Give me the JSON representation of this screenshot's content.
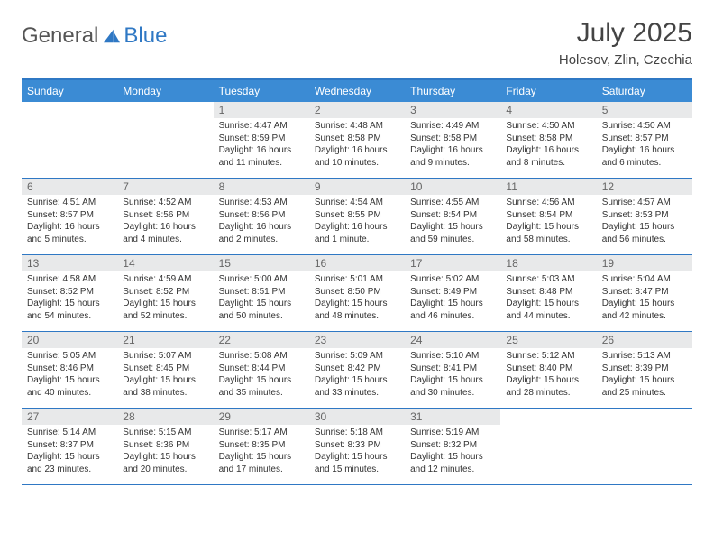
{
  "brand": {
    "part1": "General",
    "part2": "Blue"
  },
  "title": "July 2025",
  "location": "Holesov, Zlin, Czechia",
  "colors": {
    "header_bg": "#3b8bd4",
    "border": "#2f78c4",
    "daynum_bg": "#e8e9ea",
    "text": "#333333"
  },
  "day_names": [
    "Sunday",
    "Monday",
    "Tuesday",
    "Wednesday",
    "Thursday",
    "Friday",
    "Saturday"
  ],
  "weeks": [
    [
      {
        "n": "",
        "sr": "",
        "ss": "",
        "dl": ""
      },
      {
        "n": "",
        "sr": "",
        "ss": "",
        "dl": ""
      },
      {
        "n": "1",
        "sr": "Sunrise: 4:47 AM",
        "ss": "Sunset: 8:59 PM",
        "dl": "Daylight: 16 hours and 11 minutes."
      },
      {
        "n": "2",
        "sr": "Sunrise: 4:48 AM",
        "ss": "Sunset: 8:58 PM",
        "dl": "Daylight: 16 hours and 10 minutes."
      },
      {
        "n": "3",
        "sr": "Sunrise: 4:49 AM",
        "ss": "Sunset: 8:58 PM",
        "dl": "Daylight: 16 hours and 9 minutes."
      },
      {
        "n": "4",
        "sr": "Sunrise: 4:50 AM",
        "ss": "Sunset: 8:58 PM",
        "dl": "Daylight: 16 hours and 8 minutes."
      },
      {
        "n": "5",
        "sr": "Sunrise: 4:50 AM",
        "ss": "Sunset: 8:57 PM",
        "dl": "Daylight: 16 hours and 6 minutes."
      }
    ],
    [
      {
        "n": "6",
        "sr": "Sunrise: 4:51 AM",
        "ss": "Sunset: 8:57 PM",
        "dl": "Daylight: 16 hours and 5 minutes."
      },
      {
        "n": "7",
        "sr": "Sunrise: 4:52 AM",
        "ss": "Sunset: 8:56 PM",
        "dl": "Daylight: 16 hours and 4 minutes."
      },
      {
        "n": "8",
        "sr": "Sunrise: 4:53 AM",
        "ss": "Sunset: 8:56 PM",
        "dl": "Daylight: 16 hours and 2 minutes."
      },
      {
        "n": "9",
        "sr": "Sunrise: 4:54 AM",
        "ss": "Sunset: 8:55 PM",
        "dl": "Daylight: 16 hours and 1 minute."
      },
      {
        "n": "10",
        "sr": "Sunrise: 4:55 AM",
        "ss": "Sunset: 8:54 PM",
        "dl": "Daylight: 15 hours and 59 minutes."
      },
      {
        "n": "11",
        "sr": "Sunrise: 4:56 AM",
        "ss": "Sunset: 8:54 PM",
        "dl": "Daylight: 15 hours and 58 minutes."
      },
      {
        "n": "12",
        "sr": "Sunrise: 4:57 AM",
        "ss": "Sunset: 8:53 PM",
        "dl": "Daylight: 15 hours and 56 minutes."
      }
    ],
    [
      {
        "n": "13",
        "sr": "Sunrise: 4:58 AM",
        "ss": "Sunset: 8:52 PM",
        "dl": "Daylight: 15 hours and 54 minutes."
      },
      {
        "n": "14",
        "sr": "Sunrise: 4:59 AM",
        "ss": "Sunset: 8:52 PM",
        "dl": "Daylight: 15 hours and 52 minutes."
      },
      {
        "n": "15",
        "sr": "Sunrise: 5:00 AM",
        "ss": "Sunset: 8:51 PM",
        "dl": "Daylight: 15 hours and 50 minutes."
      },
      {
        "n": "16",
        "sr": "Sunrise: 5:01 AM",
        "ss": "Sunset: 8:50 PM",
        "dl": "Daylight: 15 hours and 48 minutes."
      },
      {
        "n": "17",
        "sr": "Sunrise: 5:02 AM",
        "ss": "Sunset: 8:49 PM",
        "dl": "Daylight: 15 hours and 46 minutes."
      },
      {
        "n": "18",
        "sr": "Sunrise: 5:03 AM",
        "ss": "Sunset: 8:48 PM",
        "dl": "Daylight: 15 hours and 44 minutes."
      },
      {
        "n": "19",
        "sr": "Sunrise: 5:04 AM",
        "ss": "Sunset: 8:47 PM",
        "dl": "Daylight: 15 hours and 42 minutes."
      }
    ],
    [
      {
        "n": "20",
        "sr": "Sunrise: 5:05 AM",
        "ss": "Sunset: 8:46 PM",
        "dl": "Daylight: 15 hours and 40 minutes."
      },
      {
        "n": "21",
        "sr": "Sunrise: 5:07 AM",
        "ss": "Sunset: 8:45 PM",
        "dl": "Daylight: 15 hours and 38 minutes."
      },
      {
        "n": "22",
        "sr": "Sunrise: 5:08 AM",
        "ss": "Sunset: 8:44 PM",
        "dl": "Daylight: 15 hours and 35 minutes."
      },
      {
        "n": "23",
        "sr": "Sunrise: 5:09 AM",
        "ss": "Sunset: 8:42 PM",
        "dl": "Daylight: 15 hours and 33 minutes."
      },
      {
        "n": "24",
        "sr": "Sunrise: 5:10 AM",
        "ss": "Sunset: 8:41 PM",
        "dl": "Daylight: 15 hours and 30 minutes."
      },
      {
        "n": "25",
        "sr": "Sunrise: 5:12 AM",
        "ss": "Sunset: 8:40 PM",
        "dl": "Daylight: 15 hours and 28 minutes."
      },
      {
        "n": "26",
        "sr": "Sunrise: 5:13 AM",
        "ss": "Sunset: 8:39 PM",
        "dl": "Daylight: 15 hours and 25 minutes."
      }
    ],
    [
      {
        "n": "27",
        "sr": "Sunrise: 5:14 AM",
        "ss": "Sunset: 8:37 PM",
        "dl": "Daylight: 15 hours and 23 minutes."
      },
      {
        "n": "28",
        "sr": "Sunrise: 5:15 AM",
        "ss": "Sunset: 8:36 PM",
        "dl": "Daylight: 15 hours and 20 minutes."
      },
      {
        "n": "29",
        "sr": "Sunrise: 5:17 AM",
        "ss": "Sunset: 8:35 PM",
        "dl": "Daylight: 15 hours and 17 minutes."
      },
      {
        "n": "30",
        "sr": "Sunrise: 5:18 AM",
        "ss": "Sunset: 8:33 PM",
        "dl": "Daylight: 15 hours and 15 minutes."
      },
      {
        "n": "31",
        "sr": "Sunrise: 5:19 AM",
        "ss": "Sunset: 8:32 PM",
        "dl": "Daylight: 15 hours and 12 minutes."
      },
      {
        "n": "",
        "sr": "",
        "ss": "",
        "dl": ""
      },
      {
        "n": "",
        "sr": "",
        "ss": "",
        "dl": ""
      }
    ]
  ]
}
